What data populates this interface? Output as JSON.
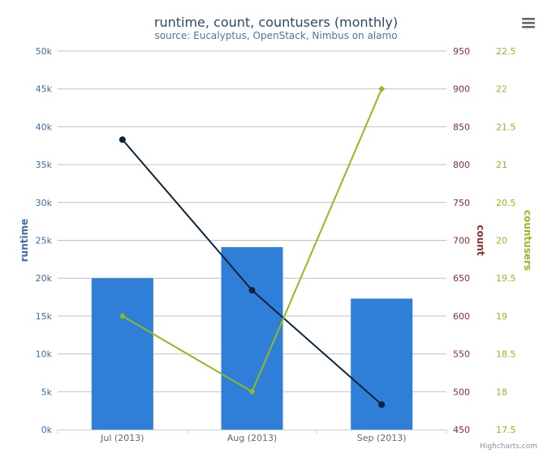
{
  "chart_data": {
    "type": "bar",
    "title": "runtime, count, countusers (monthly)",
    "subtitle": "source: Eucalyptus, OpenStack, Nimbus on alamo",
    "categories": [
      "Jul (2013)",
      "Aug (2013)",
      "Sep (2013)"
    ],
    "credits": "Highcharts.com",
    "colors": {
      "runtime": "#2f7ed8",
      "count": "#0d233a",
      "countusers": "#8bbc21",
      "count_axis": "#8b2e2e",
      "runtime_axis": "#3d6ab0",
      "grid": "#c0c0c0",
      "title": "#274b6d",
      "subtitle": "#4d759e",
      "credits": "#909090"
    },
    "axes": {
      "runtime": {
        "label": "runtime",
        "ylim": [
          0,
          50000
        ],
        "ticks": [
          "0k",
          "5k",
          "10k",
          "15k",
          "20k",
          "25k",
          "30k",
          "35k",
          "40k",
          "45k",
          "50k"
        ]
      },
      "count": {
        "label": "count",
        "ylim": [
          450,
          950
        ],
        "ticks": [
          "450",
          "500",
          "550",
          "600",
          "650",
          "700",
          "750",
          "800",
          "850",
          "900",
          "950"
        ]
      },
      "countusers": {
        "label": "countusers",
        "ylim": [
          17.5,
          22.5
        ],
        "ticks": [
          "17.5",
          "18",
          "18.5",
          "19",
          "19.5",
          "20",
          "20.5",
          "21",
          "21.5",
          "22",
          "22.5"
        ]
      }
    },
    "series": [
      {
        "name": "runtime",
        "type": "bar",
        "axis": "runtime",
        "values": [
          20000,
          24100,
          17300
        ]
      },
      {
        "name": "count",
        "type": "line",
        "axis": "count",
        "marker": "circle",
        "values": [
          833,
          634,
          483
        ]
      },
      {
        "name": "countusers",
        "type": "line",
        "axis": "countusers",
        "marker": "diamond",
        "values": [
          19,
          18,
          22
        ]
      }
    ]
  }
}
